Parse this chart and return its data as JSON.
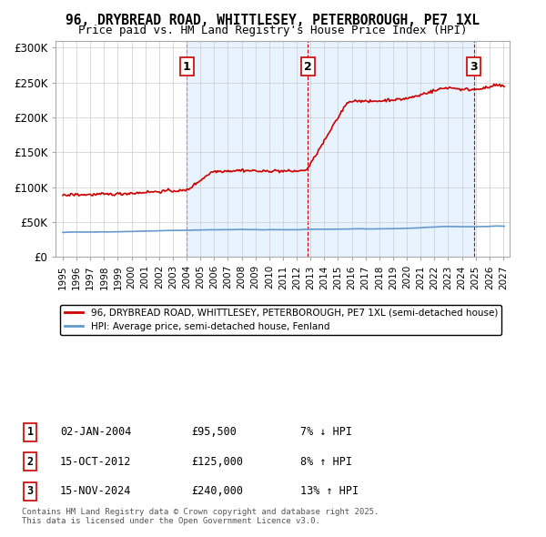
{
  "title": "96, DRYBREAD ROAD, WHITTLESEY, PETERBOROUGH, PE7 1XL",
  "subtitle": "Price paid vs. HM Land Registry's House Price Index (HPI)",
  "legend_line1": "96, DRYBREAD ROAD, WHITTLESEY, PETERBOROUGH, PE7 1XL (semi-detached house)",
  "legend_line2": "HPI: Average price, semi-detached house, Fenland",
  "footer": "Contains HM Land Registry data © Crown copyright and database right 2025.\nThis data is licensed under the Open Government Licence v3.0.",
  "sale_points": [
    {
      "num": 1,
      "date": "02-JAN-2004",
      "price": 95500,
      "pct": "7%",
      "dir": "↓",
      "x": 2004.01
    },
    {
      "num": 2,
      "date": "15-OCT-2012",
      "price": 125000,
      "pct": "8%",
      "dir": "↑",
      "x": 2012.79
    },
    {
      "num": 3,
      "date": "15-NOV-2024",
      "price": 240000,
      "pct": "13%",
      "dir": "↑",
      "x": 2024.87
    }
  ],
  "hpi_color": "#6699cc",
  "price_color": "#cc0000",
  "sale_vline_color": "#cc0000",
  "shade_color": "#ddeeff",
  "ylim": [
    0,
    310000
  ],
  "xlim_start": 1994.5,
  "xlim_end": 2027.5,
  "yticks": [
    0,
    50000,
    100000,
    150000,
    200000,
    250000,
    300000
  ],
  "ytick_labels": [
    "£0",
    "£50K",
    "£100K",
    "£150K",
    "£200K",
    "£250K",
    "£300K"
  ],
  "xtick_years": [
    1995,
    1996,
    1997,
    1998,
    1999,
    2000,
    2001,
    2002,
    2003,
    2004,
    2005,
    2006,
    2007,
    2008,
    2009,
    2010,
    2011,
    2012,
    2013,
    2014,
    2015,
    2016,
    2017,
    2018,
    2019,
    2020,
    2021,
    2022,
    2023,
    2024,
    2025,
    2026,
    2027
  ]
}
